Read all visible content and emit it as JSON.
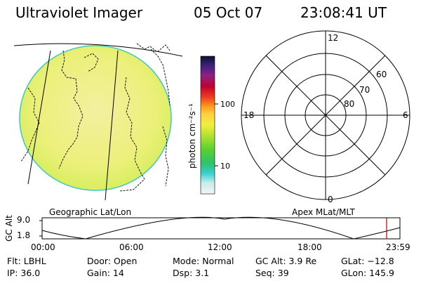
{
  "header": {
    "title": "Ultraviolet Imager",
    "date": "05 Oct 07",
    "time": "23:08:41 UT"
  },
  "colorbar": {
    "unit_label": "photon cm⁻²s⁻¹",
    "ticks": [
      "100",
      "10"
    ]
  },
  "map_left": {
    "caption": "Geographic Lat/Lon"
  },
  "polar": {
    "caption": "Apex MLat/MLT",
    "mlt_labels": {
      "top": "12",
      "bottom": "0",
      "left": "18",
      "right": "6"
    },
    "lat_labels": [
      "60",
      "70",
      "80"
    ]
  },
  "altitude_plot": {
    "ylabel": "GC Alt",
    "y_ticks": [
      "9.0",
      "1.8"
    ],
    "x_ticks": [
      "00:00",
      "06:00",
      "12:00",
      "18:00",
      "23:59"
    ]
  },
  "info": {
    "flt": "Flt: LBHL",
    "ip": "IP: 36.0",
    "door": "Door: Open",
    "gain": "Gain: 14",
    "mode": "Mode: Normal",
    "dsp": "Dsp:    3.1",
    "gc_alt": "GC Alt: 3.9 Re",
    "seq": "Seq: 39",
    "glat": "GLat: −12.8",
    "glon": "GLon: 145.9"
  }
}
